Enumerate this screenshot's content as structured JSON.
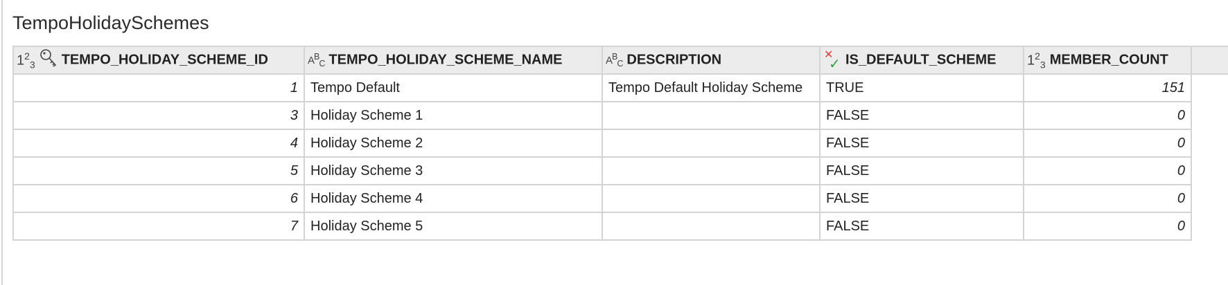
{
  "title": "TempoHolidaySchemes",
  "columns": [
    {
      "label": "TEMPO_HOLIDAY_SCHEME_ID",
      "type_icon": "numeric-icon",
      "key_icon": "primary-key-icon"
    },
    {
      "label": "TEMPO_HOLIDAY_SCHEME_NAME",
      "type_icon": "text-icon"
    },
    {
      "label": "DESCRIPTION",
      "type_icon": "text-icon"
    },
    {
      "label": "IS_DEFAULT_SCHEME",
      "type_icon": "boolean-icon"
    },
    {
      "label": "MEMBER_COUNT",
      "type_icon": "numeric-icon"
    }
  ],
  "rows": [
    {
      "id": "1",
      "name": "Tempo Default",
      "description": "Tempo Default Holiday Scheme",
      "is_default": "TRUE",
      "member_count": "151"
    },
    {
      "id": "3",
      "name": "Holiday Scheme 1",
      "description": "",
      "is_default": "FALSE",
      "member_count": "0"
    },
    {
      "id": "4",
      "name": "Holiday Scheme 2",
      "description": "",
      "is_default": "FALSE",
      "member_count": "0"
    },
    {
      "id": "5",
      "name": "Holiday Scheme 3",
      "description": "",
      "is_default": "FALSE",
      "member_count": "0"
    },
    {
      "id": "6",
      "name": "Holiday Scheme 4",
      "description": "",
      "is_default": "FALSE",
      "member_count": "0"
    },
    {
      "id": "7",
      "name": "Holiday Scheme 5",
      "description": "",
      "is_default": "FALSE",
      "member_count": "0"
    }
  ]
}
